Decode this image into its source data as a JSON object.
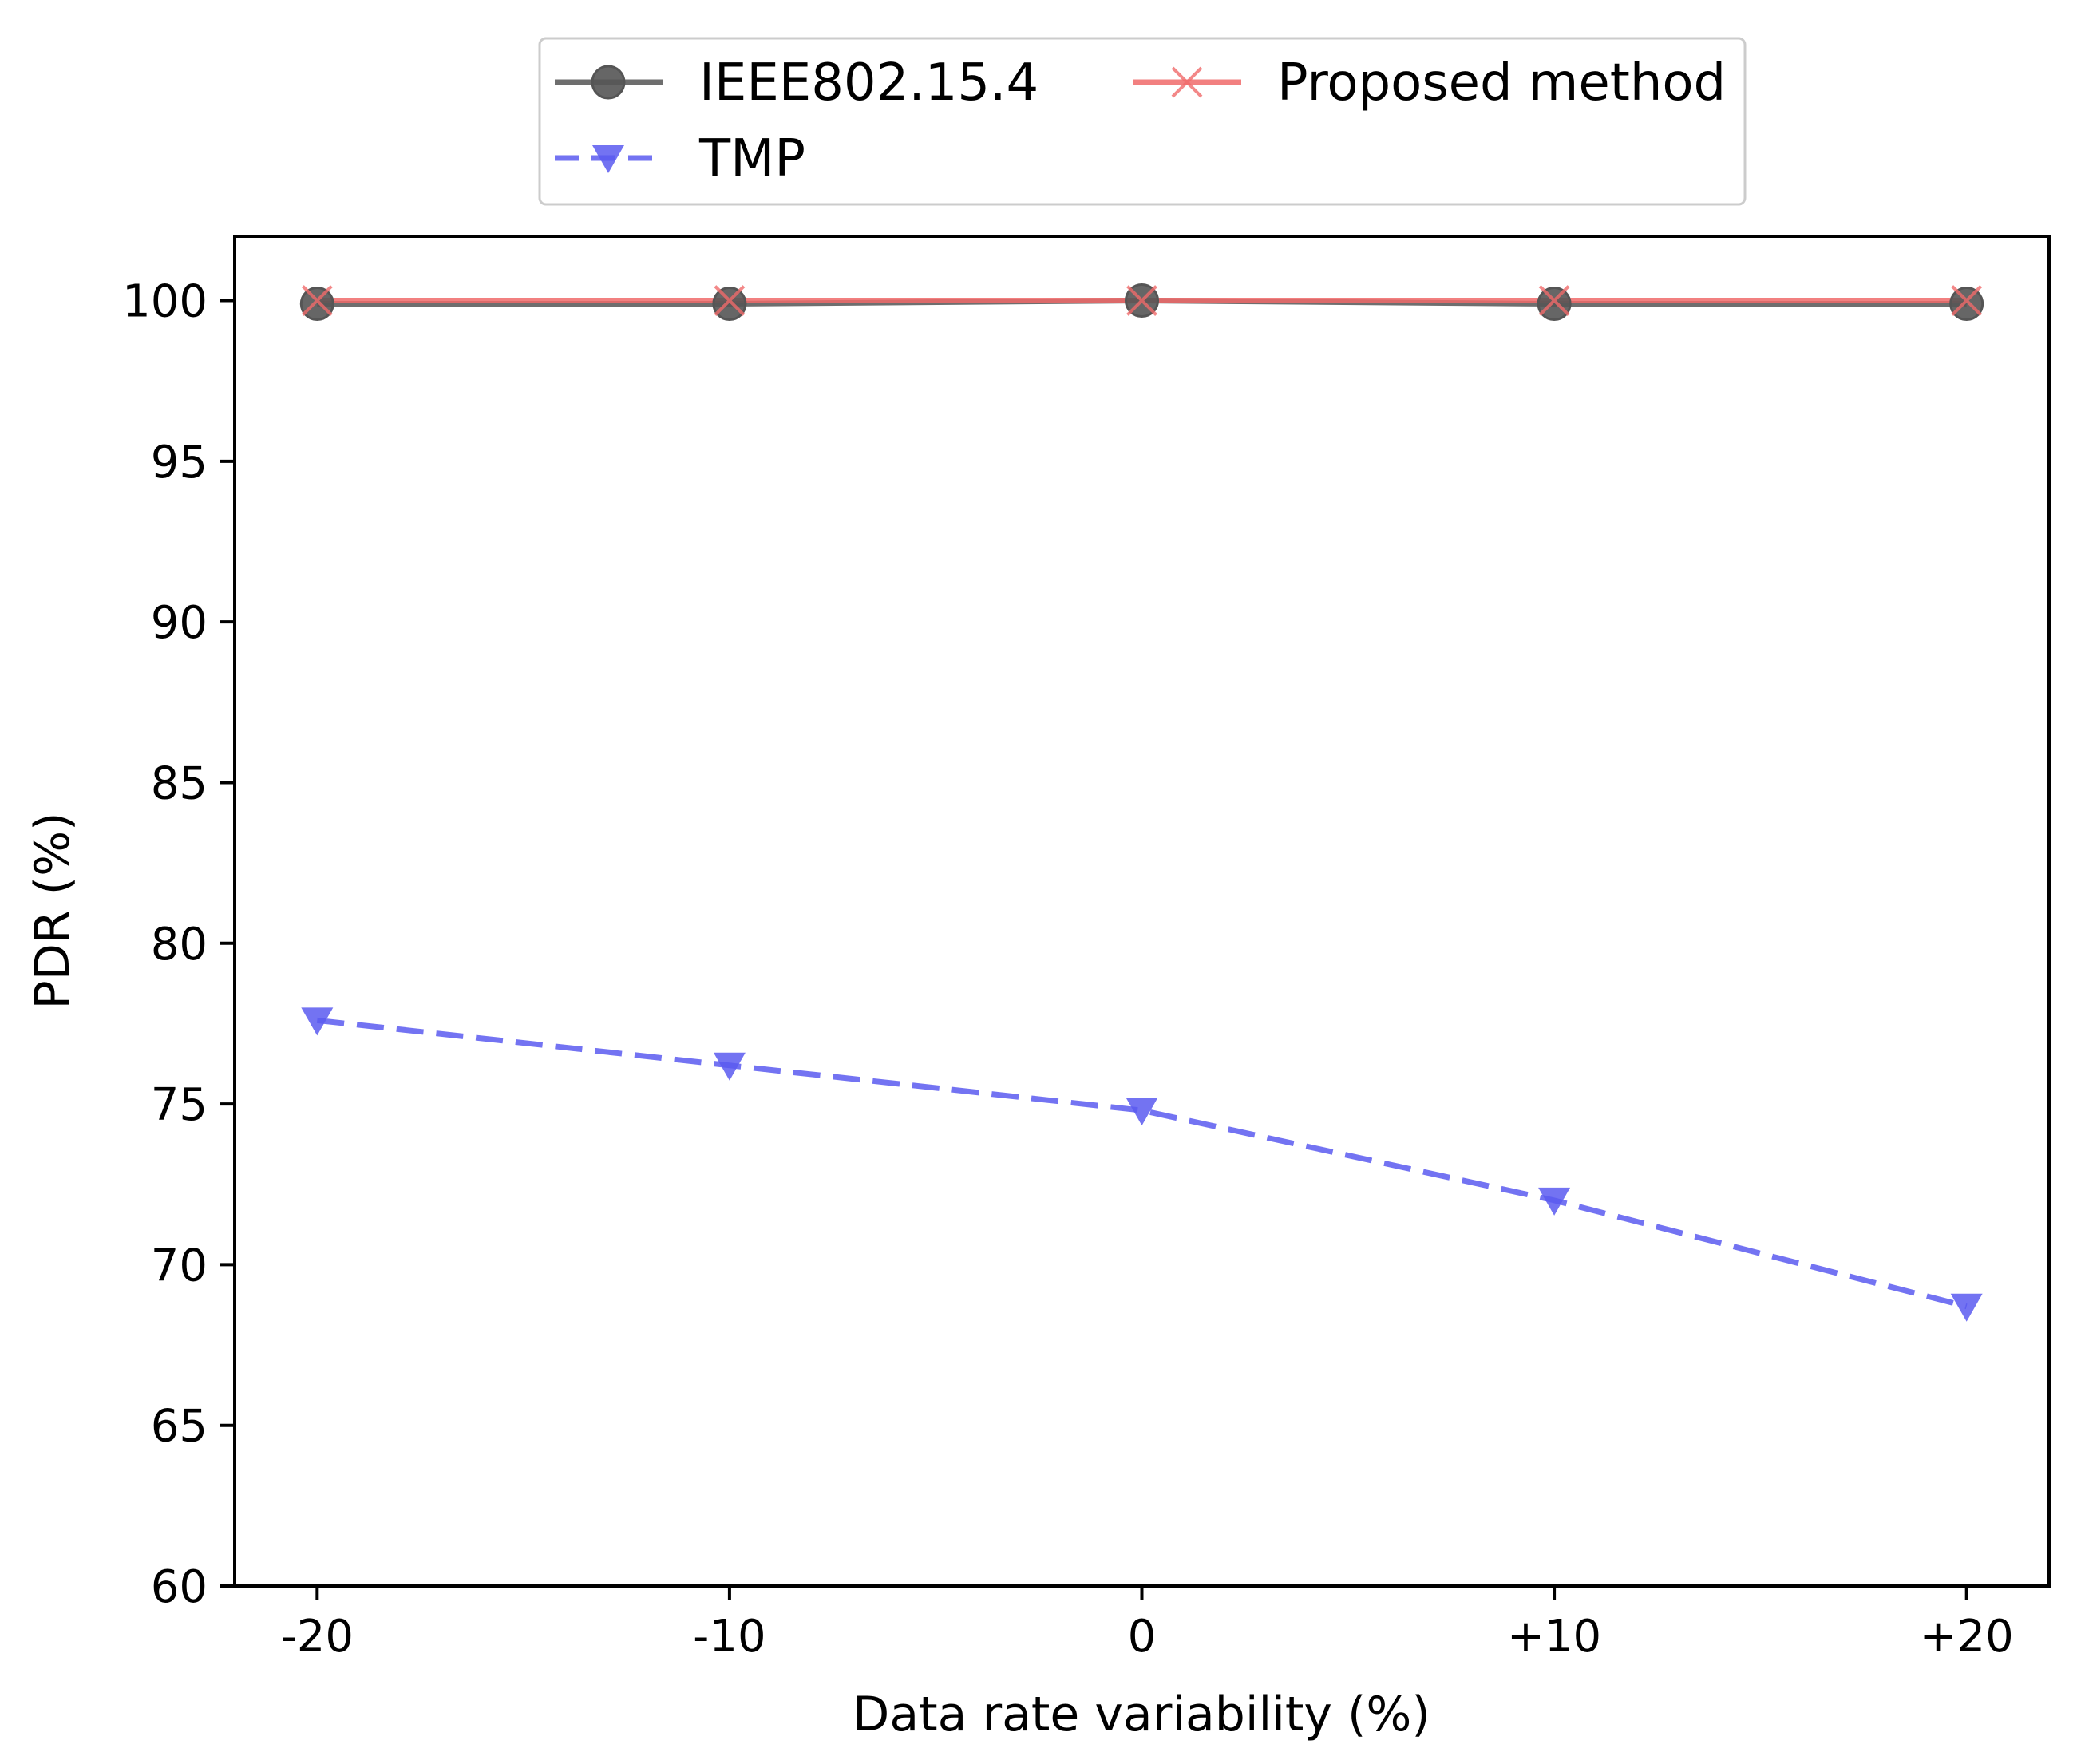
{
  "chart_data": {
    "type": "line",
    "title": "",
    "xlabel": "Data rate variability (%)",
    "ylabel": "PDR (%)",
    "categories": [
      "-20",
      "-10",
      "0",
      "+10",
      "+20"
    ],
    "x": [
      -20,
      -10,
      0,
      10,
      20
    ],
    "xlim": [
      -22,
      22
    ],
    "ylim": [
      60,
      102
    ],
    "yticks": [
      60,
      65,
      70,
      75,
      80,
      85,
      90,
      95,
      100
    ],
    "grid": false,
    "legend_position": "top-center, outside the plot area",
    "series": [
      {
        "name": "IEEE802.15.4",
        "color": "#555555",
        "linestyle": "solid",
        "marker": "circle",
        "values": [
          99.9,
          99.9,
          100.0,
          99.9,
          99.9
        ]
      },
      {
        "name": "TMP",
        "color": "#5a5af0",
        "linestyle": "dashed",
        "marker": "triangle-down",
        "values": [
          77.6,
          76.2,
          74.8,
          72.0,
          68.7
        ]
      },
      {
        "name": "Proposed method",
        "color": "#f06a6a",
        "linestyle": "solid",
        "marker": "x",
        "values": [
          100.0,
          100.0,
          100.0,
          100.0,
          100.0
        ]
      }
    ]
  }
}
